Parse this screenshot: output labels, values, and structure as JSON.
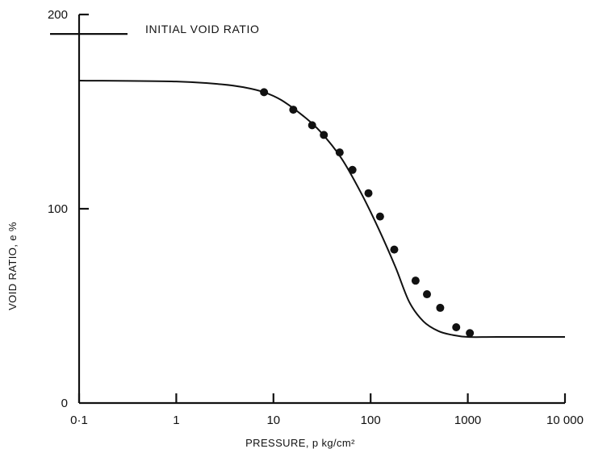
{
  "chart_data": {
    "type": "scatter",
    "xlabel": "PRESSURE,  p   kg/cm²",
    "ylabel": "VOID RATIO,  e %",
    "xscale": "log",
    "xlim": [
      0.1,
      10000
    ],
    "ylim": [
      0,
      200
    ],
    "x_ticks": [
      0.1,
      1,
      10,
      100,
      1000,
      10000
    ],
    "x_tick_labels": [
      "0·1",
      "1",
      "10",
      "100",
      "1000",
      "10 000"
    ],
    "y_ticks": [
      0,
      100,
      200
    ],
    "y_tick_labels": [
      "0",
      "100",
      "200"
    ],
    "grid": false,
    "annotations": [
      {
        "text": "INITIAL VOID RATIO",
        "y": 190
      }
    ],
    "series": [
      {
        "type": "line",
        "x": [
          0.1,
          1,
          3,
          5,
          8,
          12,
          20,
          30,
          50,
          80,
          120,
          180,
          250,
          350,
          500,
          700,
          1000,
          2000,
          10000
        ],
        "y": [
          166,
          165.5,
          164,
          162.5,
          160,
          156,
          148,
          140,
          126,
          108,
          90,
          70,
          52,
          42,
          37,
          35,
          34,
          34,
          34
        ]
      },
      {
        "type": "scatter",
        "x": [
          8,
          16,
          25,
          33,
          48,
          65,
          95,
          125,
          175,
          290,
          380,
          520,
          760,
          1050
        ],
        "y": [
          160,
          151,
          143,
          138,
          129,
          120,
          108,
          96,
          79,
          63,
          56,
          49,
          39,
          36
        ]
      }
    ]
  }
}
